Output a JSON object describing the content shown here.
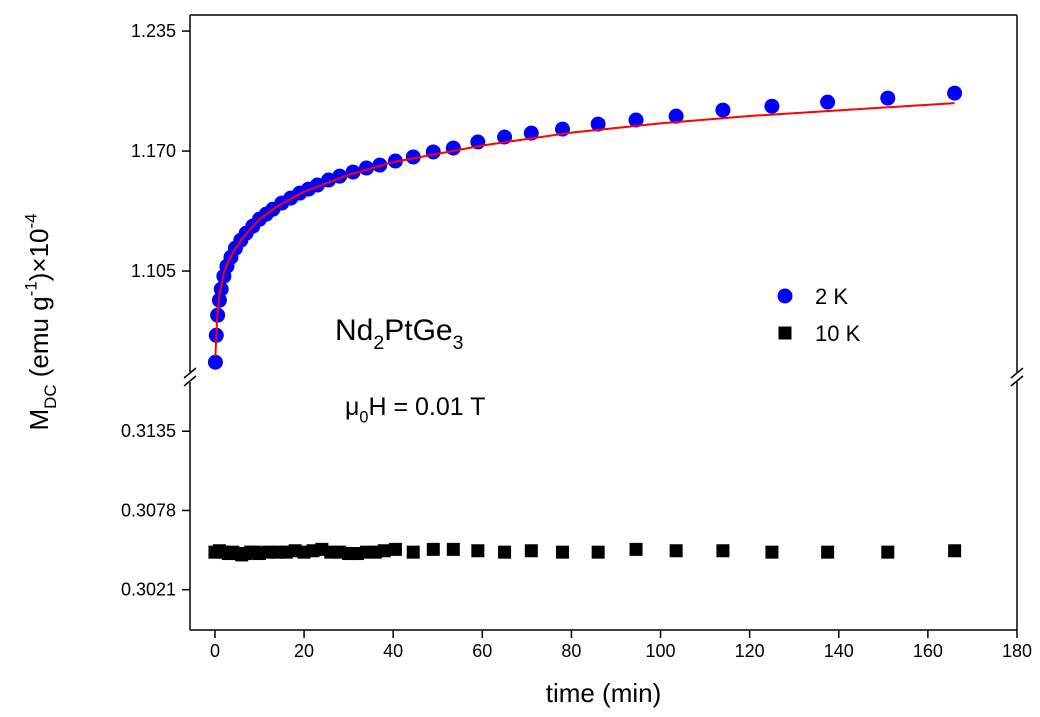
{
  "chart_data": {
    "type": "scatter",
    "xlabel": "time (min)",
    "ylabel": [
      {
        "text": "M"
      },
      {
        "sub": "DC"
      },
      {
        "text": " (emu g"
      },
      {
        "sup": "-1"
      },
      {
        "text": ")×10"
      },
      {
        "sup": "-4"
      }
    ],
    "annotations": [
      [
        {
          "text": "Nd"
        },
        {
          "sub": "2"
        },
        {
          "text": "PtGe"
        },
        {
          "sub": "3"
        }
      ],
      [
        {
          "text": "μ"
        },
        {
          "sub": "0"
        },
        {
          "text": "H = 0.01 T"
        }
      ]
    ],
    "xlim": [
      -5.6,
      180
    ],
    "xticks": [
      0,
      20,
      40,
      60,
      80,
      100,
      120,
      140,
      160,
      180
    ],
    "ylim": [
      1.0476,
      1.2437
    ],
    "yticks": [
      {
        "value": 1.105,
        "label": "1.105"
      },
      {
        "value": 1.17,
        "label": "1.170"
      },
      1.235
    ],
    "y2lim": [
      0.2992,
      0.3174
    ],
    "y2ticks": [
      0.3021,
      0.3078,
      0.3135
    ],
    "broken_axis": true,
    "legend": "center-right",
    "series": [
      {
        "name": "2 K",
        "marker": "circle",
        "color": "#0000ff",
        "x": [
          0.1,
          0.3,
          0.6,
          1,
          1.4,
          2,
          2.7,
          3.6,
          4.6,
          5.8,
          7,
          8.5,
          10,
          11.5,
          13,
          15,
          17,
          19,
          21,
          23,
          25.5,
          28,
          31,
          34,
          37,
          40.5,
          44.5,
          49,
          53.5,
          59,
          65,
          71,
          78,
          86,
          94.5,
          103.5,
          114,
          125,
          137.5,
          151,
          166
        ],
        "values": [
          1.0556,
          1.0702,
          1.0811,
          1.0892,
          1.0952,
          1.1022,
          1.1076,
          1.1125,
          1.1174,
          1.1217,
          1.1255,
          1.1293,
          1.1331,
          1.1358,
          1.1385,
          1.1418,
          1.1445,
          1.1472,
          1.1494,
          1.1516,
          1.1543,
          1.1564,
          1.1586,
          1.1608,
          1.1624,
          1.1646,
          1.1668,
          1.1695,
          1.1716,
          1.1749,
          1.1776,
          1.1797,
          1.1819,
          1.1846,
          1.1868,
          1.1889,
          1.1922,
          1.1943,
          1.1965,
          1.1987,
          1.2014
        ]
      },
      {
        "marker": "line",
        "color": "#ff0000",
        "x": [
          0.1,
          0.5,
          1,
          2,
          3,
          4.5,
          6,
          8,
          10,
          14,
          20,
          30,
          40,
          60,
          80,
          100,
          120,
          140,
          166
        ],
        "values": [
          1.059,
          1.08,
          1.092,
          1.104,
          1.11,
          1.117,
          1.122,
          1.128,
          1.133,
          1.14,
          1.148,
          1.157,
          1.164,
          1.173,
          1.18,
          1.185,
          1.189,
          1.192,
          1.196
        ]
      },
      {
        "name": "10 K",
        "marker": "square",
        "color": "#000000",
        "axis": "y2",
        "x": [
          0,
          1,
          2,
          3,
          4,
          5,
          6,
          7,
          8,
          9,
          10,
          12,
          14,
          16,
          18,
          20,
          22,
          24,
          26,
          28,
          30,
          32,
          34,
          36,
          38,
          40.5,
          44.5,
          49,
          53.5,
          59,
          65,
          71,
          78,
          86,
          94.5,
          103.5,
          114,
          125,
          137.5,
          151,
          166
        ],
        "values": [
          0.3048,
          0.3049,
          0.3048,
          0.3047,
          0.3048,
          0.3047,
          0.3046,
          0.3047,
          0.3048,
          0.3048,
          0.3047,
          0.3048,
          0.3048,
          0.3048,
          0.3049,
          0.3048,
          0.3049,
          0.305,
          0.3048,
          0.3048,
          0.3047,
          0.3047,
          0.3048,
          0.3048,
          0.3049,
          0.305,
          0.3048,
          0.305,
          0.305,
          0.3049,
          0.3048,
          0.3049,
          0.3048,
          0.3048,
          0.305,
          0.3049,
          0.3049,
          0.3048,
          0.3048,
          0.3048,
          0.3049
        ]
      }
    ]
  }
}
